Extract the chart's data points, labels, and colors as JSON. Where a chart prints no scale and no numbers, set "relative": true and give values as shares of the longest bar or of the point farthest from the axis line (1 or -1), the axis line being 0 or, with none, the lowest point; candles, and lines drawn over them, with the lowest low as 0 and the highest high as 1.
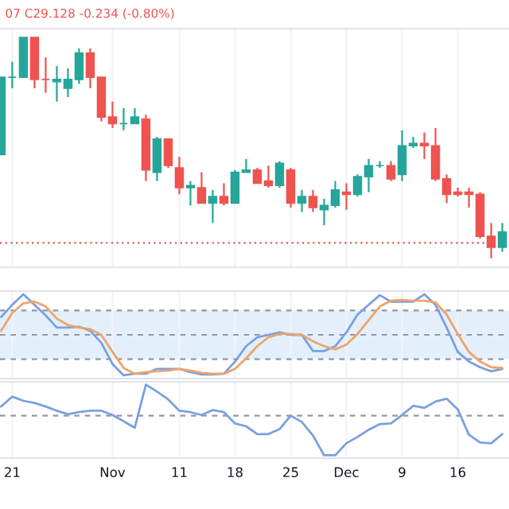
{
  "chart_data": [
    {
      "type": "candlestick",
      "relative": true,
      "grid": true,
      "annotations": [
        "07 C29.128 -0.234 (-0.80%)"
      ],
      "categories": [
        null,
        null,
        null,
        null,
        null,
        null,
        null,
        null,
        null,
        null,
        null,
        null,
        null,
        null,
        null,
        null,
        null,
        null,
        null,
        null,
        null,
        null,
        null,
        null,
        null,
        null,
        null,
        null,
        null,
        null,
        null,
        null,
        null,
        null,
        null,
        null,
        null,
        null,
        null,
        null,
        null,
        null,
        null,
        null,
        null,
        null
      ],
      "colors": [
        "#26a69a",
        "#26a69a",
        "#26a69a",
        "#ef5350",
        "#ef5350",
        "#26a69a",
        "#26a69a",
        "#26a69a",
        "#ef5350",
        "#ef5350",
        "#ef5350",
        "#26a69a",
        "#26a69a",
        "#ef5350",
        "#26a69a",
        "#ef5350",
        "#ef5350",
        "#26a69a",
        "#ef5350",
        "#26a69a",
        "#ef5350",
        "#26a69a",
        "#26a69a",
        "#ef5350",
        "#ef5350",
        "#26a69a",
        "#ef5350",
        "#26a69a",
        "#ef5350",
        "#26a69a",
        "#26a69a",
        "#ef5350",
        "#26a69a",
        "#26a69a",
        "#26a69a",
        "#ef5350",
        "#26a69a",
        "#26a69a",
        "#ef5350",
        "#ef5350",
        "#ef5350",
        "#ef5350",
        "#ef5350",
        "#ef5350",
        "#ef5350",
        "#26a69a"
      ],
      "ohlc": [
        [
          0.47,
          0.82,
          0.47,
          0.82
        ],
        [
          0.82,
          0.89,
          0.77,
          0.82
        ],
        [
          0.82,
          1.0,
          0.82,
          1.0
        ],
        [
          1.0,
          1.0,
          0.77,
          0.81
        ],
        [
          0.81,
          0.91,
          0.75,
          0.81
        ],
        [
          0.8,
          0.87,
          0.71,
          0.81
        ],
        [
          0.77,
          0.86,
          0.73,
          0.81
        ],
        [
          0.81,
          0.95,
          0.79,
          0.93
        ],
        [
          0.93,
          0.95,
          0.77,
          0.82
        ],
        [
          0.82,
          0.82,
          0.62,
          0.64
        ],
        [
          0.64,
          0.71,
          0.59,
          0.61
        ],
        [
          0.61,
          0.68,
          0.58,
          0.61
        ],
        [
          0.61,
          0.68,
          0.61,
          0.64
        ],
        [
          0.63,
          0.65,
          0.35,
          0.4
        ],
        [
          0.39,
          0.55,
          0.35,
          0.54
        ],
        [
          0.54,
          0.54,
          0.41,
          0.42
        ],
        [
          0.41,
          0.46,
          0.29,
          0.32
        ],
        [
          0.32,
          0.35,
          0.24,
          0.33
        ],
        [
          0.32,
          0.39,
          0.25,
          0.25
        ],
        [
          0.25,
          0.31,
          0.16,
          0.28
        ],
        [
          0.28,
          0.34,
          0.24,
          0.25
        ],
        [
          0.25,
          0.4,
          0.25,
          0.39
        ],
        [
          0.39,
          0.45,
          0.39,
          0.4
        ],
        [
          0.4,
          0.41,
          0.34,
          0.34
        ],
        [
          0.35,
          0.42,
          0.32,
          0.33
        ],
        [
          0.33,
          0.44,
          0.32,
          0.43
        ],
        [
          0.4,
          0.41,
          0.23,
          0.25
        ],
        [
          0.25,
          0.31,
          0.21,
          0.28
        ],
        [
          0.28,
          0.31,
          0.21,
          0.23
        ],
        [
          0.22,
          0.27,
          0.15,
          0.24
        ],
        [
          0.24,
          0.35,
          0.23,
          0.31
        ],
        [
          0.3,
          0.34,
          0.22,
          0.29
        ],
        [
          0.29,
          0.38,
          0.28,
          0.37
        ],
        [
          0.37,
          0.45,
          0.3,
          0.42
        ],
        [
          0.42,
          0.44,
          0.41,
          0.42
        ],
        [
          0.42,
          0.44,
          0.35,
          0.36
        ],
        [
          0.38,
          0.58,
          0.35,
          0.51
        ],
        [
          0.51,
          0.55,
          0.5,
          0.52
        ],
        [
          0.52,
          0.57,
          0.45,
          0.51
        ],
        [
          0.51,
          0.59,
          0.35,
          0.36
        ],
        [
          0.36,
          0.38,
          0.25,
          0.29
        ],
        [
          0.3,
          0.32,
          0.28,
          0.29
        ],
        [
          0.3,
          0.32,
          0.23,
          0.29
        ],
        [
          0.29,
          0.3,
          0.09,
          0.1
        ],
        [
          0.1,
          0.16,
          0.0,
          0.05
        ],
        [
          0.05,
          0.16,
          0.03,
          0.12
        ]
      ],
      "ref_lines": [
        {
          "axis": "y",
          "value": 0.07,
          "color": "#ef5350",
          "line_style": "dotted"
        }
      ]
    },
    {
      "type": "line",
      "relative": true,
      "grid": true,
      "categories": [
        null,
        null,
        null,
        null,
        null,
        null,
        null,
        null,
        null,
        null,
        null,
        null,
        null,
        null,
        null,
        null,
        null,
        null,
        null,
        null,
        null,
        null,
        null,
        null,
        null,
        null,
        null,
        null,
        null,
        null,
        null,
        null,
        null,
        null,
        null,
        null,
        null,
        null,
        null,
        null,
        null,
        null,
        null,
        null,
        null,
        null
      ],
      "series": [
        {
          "color": "#7b9fe0",
          "values": [
            0.72,
            0.87,
            1.0,
            0.87,
            0.74,
            0.59,
            0.59,
            0.6,
            0.55,
            0.4,
            0.14,
            0.0,
            0.02,
            0.02,
            0.08,
            0.08,
            0.08,
            0.04,
            0.01,
            0.01,
            0.02,
            0.17,
            0.36,
            0.47,
            0.5,
            0.53,
            0.5,
            0.5,
            0.3,
            0.3,
            0.36,
            0.53,
            0.75,
            0.87,
            0.99,
            0.91,
            0.91,
            0.91,
            1.0,
            0.87,
            0.59,
            0.29,
            0.17,
            0.1,
            0.05,
            0.08
          ]
        },
        {
          "color": "#f0a36c",
          "values": [
            0.55,
            0.77,
            0.89,
            0.91,
            0.85,
            0.7,
            0.62,
            0.59,
            0.57,
            0.5,
            0.29,
            0.09,
            0.02,
            0.04,
            0.05,
            0.06,
            0.08,
            0.06,
            0.03,
            0.02,
            0.02,
            0.08,
            0.21,
            0.36,
            0.47,
            0.51,
            0.51,
            0.5,
            0.42,
            0.36,
            0.32,
            0.38,
            0.51,
            0.68,
            0.85,
            0.92,
            0.93,
            0.92,
            0.92,
            0.9,
            0.75,
            0.51,
            0.29,
            0.17,
            0.1,
            0.09
          ]
        }
      ],
      "bands": [
        {
          "axis": "y",
          "from": 0.2,
          "to": 0.8,
          "color": "#e3f0fc"
        }
      ],
      "ref_lines": [
        {
          "axis": "y",
          "value": 0.8,
          "color": "#9598a1",
          "line_style": "dashed"
        },
        {
          "axis": "y",
          "value": 0.5,
          "color": "#9598a1",
          "line_style": "dashed"
        },
        {
          "axis": "y",
          "value": 0.2,
          "color": "#9598a1",
          "line_style": "dashed"
        }
      ]
    },
    {
      "type": "line",
      "relative": true,
      "grid": true,
      "categories": [
        null,
        "21",
        null,
        null,
        null,
        null,
        null,
        null,
        null,
        null,
        "Nov",
        null,
        null,
        null,
        null,
        null,
        "11",
        null,
        null,
        null,
        null,
        "18",
        null,
        null,
        null,
        null,
        "25",
        null,
        null,
        null,
        null,
        "Dec",
        null,
        null,
        null,
        null,
        "9",
        null,
        null,
        null,
        null,
        "16",
        null,
        null,
        null,
        null
      ],
      "series": [
        {
          "color": "#7b9fe0",
          "values": [
            0.69,
            0.83,
            0.77,
            0.74,
            0.69,
            0.63,
            0.58,
            0.61,
            0.63,
            0.63,
            0.57,
            0.48,
            0.39,
            1.0,
            0.9,
            0.79,
            0.63,
            0.61,
            0.57,
            0.64,
            0.61,
            0.45,
            0.41,
            0.3,
            0.3,
            0.37,
            0.56,
            0.47,
            0.28,
            0.0,
            0.0,
            0.17,
            0.26,
            0.36,
            0.44,
            0.45,
            0.57,
            0.7,
            0.67,
            0.76,
            0.8,
            0.65,
            0.29,
            0.18,
            0.17,
            0.3
          ]
        }
      ],
      "ref_lines": [
        {
          "axis": "y",
          "value": 0.56,
          "color": "#9598a1",
          "line_style": "dashed"
        }
      ]
    }
  ]
}
